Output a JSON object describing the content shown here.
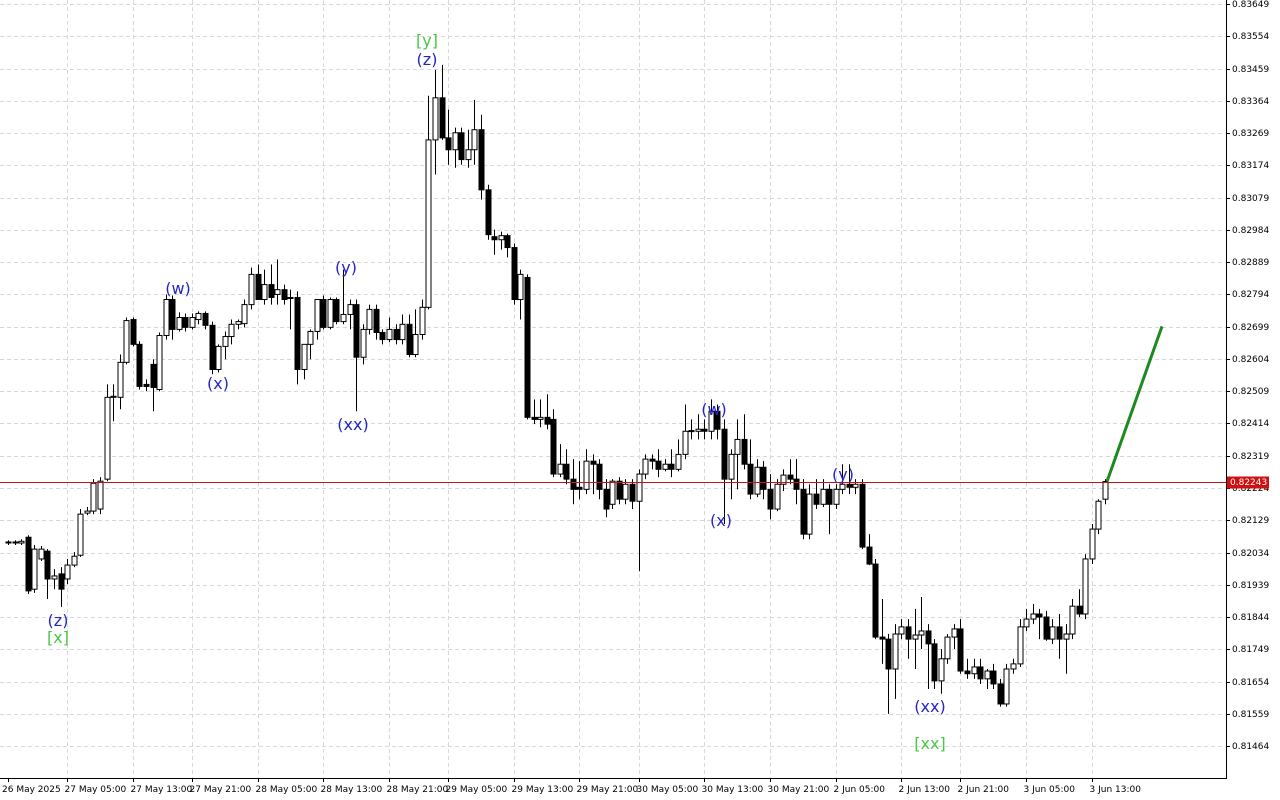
{
  "chart_data": {
    "type": "candlestick",
    "categories": [
      "26 May 2025",
      null,
      null,
      null,
      null,
      null,
      null,
      null,
      null,
      "27 May 05:00",
      null,
      null,
      null,
      null,
      null,
      null,
      null,
      null,
      null,
      "27 May 13:00",
      null,
      null,
      null,
      null,
      null,
      null,
      null,
      null,
      "27 May 21:00",
      null,
      null,
      null,
      null,
      null,
      null,
      null,
      null,
      null,
      "28 May 05:00",
      null,
      null,
      null,
      null,
      null,
      null,
      null,
      null,
      null,
      "28 May 13:00",
      null,
      null,
      null,
      null,
      null,
      null,
      null,
      null,
      null,
      "28 May 21:00",
      null,
      null,
      null,
      null,
      null,
      null,
      null,
      null,
      "29 May 05:00",
      null,
      null,
      null,
      null,
      null,
      null,
      null,
      null,
      null,
      "29 May 13:00",
      null,
      null,
      null,
      null,
      null,
      null,
      null,
      null,
      null,
      "29 May 21:00",
      null,
      null,
      null,
      null,
      null,
      null,
      null,
      null,
      "30 May 05:00",
      null,
      null,
      null,
      null,
      null,
      null,
      null,
      null,
      null,
      "30 May 13:00",
      null,
      null,
      null,
      null,
      null,
      null,
      null,
      null,
      null,
      "30 May 21:00",
      null,
      null,
      null,
      null,
      null,
      null,
      null,
      null,
      null,
      "2 Jun 05:00",
      null,
      null,
      null,
      null,
      null,
      null,
      null,
      null,
      null,
      "2 Jun 13:00",
      null,
      null,
      null,
      null,
      null,
      null,
      null,
      null,
      "2 Jun 21:00",
      null,
      null,
      null,
      null,
      null,
      null,
      null,
      null,
      null,
      "3 Jun 05:00",
      null,
      null,
      null,
      null,
      null,
      null,
      null,
      null,
      null,
      "3 Jun 13:00",
      null,
      null
    ],
    "candles": [
      [
        0.82065,
        0.8207,
        0.82056,
        0.82062
      ],
      [
        0.82065,
        0.8207,
        0.82056,
        0.82065
      ],
      [
        0.82062,
        0.82073,
        0.82056,
        0.82067
      ],
      [
        0.82079,
        0.82085,
        0.81912,
        0.81921
      ],
      [
        0.81926,
        0.82056,
        0.81915,
        0.82044
      ],
      [
        0.82015,
        0.82053,
        0.82009,
        0.82044
      ],
      [
        0.82038,
        0.82044,
        0.81897,
        0.81956
      ],
      [
        0.81956,
        0.81985,
        0.81926,
        0.81965
      ],
      [
        0.81971,
        0.81991,
        0.81874,
        0.81926
      ],
      [
        0.81956,
        0.82015,
        0.81941,
        0.81997
      ],
      [
        0.81997,
        0.82035,
        0.81991,
        0.82023
      ],
      [
        0.82026,
        0.82162,
        0.82021,
        0.82147
      ],
      [
        0.8215,
        0.82168,
        0.82144,
        0.82156
      ],
      [
        0.82156,
        0.8225,
        0.82147,
        0.82238
      ],
      [
        0.82162,
        0.82256,
        0.82147,
        0.82244
      ],
      [
        0.8225,
        0.82529,
        0.82244,
        0.82491
      ],
      [
        0.82491,
        0.82529,
        0.8242,
        0.82494
      ],
      [
        0.82491,
        0.82617,
        0.82456,
        0.82594
      ],
      [
        0.82594,
        0.82726,
        0.82588,
        0.82717
      ],
      [
        0.8272,
        0.82726,
        0.82641,
        0.82647
      ],
      [
        0.82647,
        0.82656,
        0.82514,
        0.82523
      ],
      [
        0.82529,
        0.82544,
        0.82509,
        0.82523
      ],
      [
        0.82588,
        0.82603,
        0.8245,
        0.8252
      ],
      [
        0.82514,
        0.82682,
        0.82509,
        0.82673
      ],
      [
        0.82673,
        0.82794,
        0.82661,
        0.82779
      ],
      [
        0.82779,
        0.82791,
        0.82661,
        0.82691
      ],
      [
        0.82691,
        0.82741,
        0.82685,
        0.82726
      ],
      [
        0.82726,
        0.82738,
        0.82685,
        0.82697
      ],
      [
        0.82697,
        0.82738,
        0.82691,
        0.82726
      ],
      [
        0.8272,
        0.82744,
        0.82706,
        0.82738
      ],
      [
        0.82738,
        0.82744,
        0.82691,
        0.82703
      ],
      [
        0.82703,
        0.82714,
        0.82559,
        0.82573
      ],
      [
        0.82573,
        0.82647,
        0.82564,
        0.82641
      ],
      [
        0.82641,
        0.82685,
        0.82603,
        0.8267
      ],
      [
        0.8267,
        0.8272,
        0.82647,
        0.82706
      ],
      [
        0.82706,
        0.8272,
        0.82691,
        0.82714
      ],
      [
        0.82708,
        0.82779,
        0.82697,
        0.82764
      ],
      [
        0.82764,
        0.82873,
        0.8275,
        0.82853
      ],
      [
        0.82853,
        0.82882,
        0.82779,
        0.82779
      ],
      [
        0.82779,
        0.82867,
        0.82764,
        0.82823
      ],
      [
        0.82823,
        0.82882,
        0.82764,
        0.82785
      ],
      [
        0.82794,
        0.82897,
        0.82764,
        0.82808
      ],
      [
        0.82808,
        0.82823,
        0.82764,
        0.82779
      ],
      [
        0.82785,
        0.82808,
        0.82691,
        0.82785
      ],
      [
        0.82785,
        0.82803,
        0.82529,
        0.82573
      ],
      [
        0.82573,
        0.82647,
        0.82544,
        0.82647
      ],
      [
        0.82647,
        0.82691,
        0.82603,
        0.82685
      ],
      [
        0.82685,
        0.82779,
        0.82661,
        0.82779
      ],
      [
        0.82779,
        0.82791,
        0.82691,
        0.82697
      ],
      [
        0.82697,
        0.82785,
        0.82691,
        0.82779
      ],
      [
        0.82779,
        0.82785,
        0.82706,
        0.82714
      ],
      [
        0.82714,
        0.82867,
        0.82706,
        0.82735
      ],
      [
        0.82735,
        0.82779,
        0.82691,
        0.82764
      ],
      [
        0.82764,
        0.82779,
        0.8245,
        0.82609
      ],
      [
        0.82609,
        0.82706,
        0.82588,
        0.82691
      ],
      [
        0.82691,
        0.82764,
        0.82676,
        0.8275
      ],
      [
        0.8275,
        0.82764,
        0.82661,
        0.82682
      ],
      [
        0.82682,
        0.82691,
        0.82647,
        0.82661
      ],
      [
        0.82661,
        0.82726,
        0.82653,
        0.82691
      ],
      [
        0.82691,
        0.82706,
        0.82647,
        0.82661
      ],
      [
        0.82661,
        0.82735,
        0.82647,
        0.82706
      ],
      [
        0.82706,
        0.82735,
        0.82609,
        0.82617
      ],
      [
        0.82617,
        0.8275,
        0.82609,
        0.82676
      ],
      [
        0.82676,
        0.82779,
        0.82661,
        0.82756
      ],
      [
        0.82756,
        0.83379,
        0.8275,
        0.83249
      ],
      [
        0.83249,
        0.83455,
        0.83147,
        0.83373
      ],
      [
        0.83373,
        0.8347,
        0.83249,
        0.83255
      ],
      [
        0.83255,
        0.83338,
        0.83176,
        0.8322
      ],
      [
        0.8322,
        0.83285,
        0.83167,
        0.8327
      ],
      [
        0.8327,
        0.83285,
        0.83176,
        0.83191
      ],
      [
        0.83191,
        0.83279,
        0.83167,
        0.8322
      ],
      [
        0.8322,
        0.83367,
        0.83176,
        0.83279
      ],
      [
        0.83279,
        0.83323,
        0.83073,
        0.83102
      ],
      [
        0.83102,
        0.83117,
        0.82955,
        0.8297
      ],
      [
        0.82964,
        0.82985,
        0.82911,
        0.82955
      ],
      [
        0.82955,
        0.82979,
        0.82926,
        0.82967
      ],
      [
        0.82967,
        0.82973,
        0.82903,
        0.82932
      ],
      [
        0.82932,
        0.82944,
        0.82764,
        0.82779
      ],
      [
        0.82779,
        0.82867,
        0.8272,
        0.82853
      ],
      [
        0.82844,
        0.82853,
        0.82426,
        0.82432
      ],
      [
        0.82432,
        0.82485,
        0.82412,
        0.82426
      ],
      [
        0.82426,
        0.82485,
        0.82403,
        0.82432
      ],
      [
        0.82432,
        0.825,
        0.82397,
        0.82412
      ],
      [
        0.82426,
        0.82456,
        0.82256,
        0.82265
      ],
      [
        0.82265,
        0.82353,
        0.82256,
        0.82294
      ],
      [
        0.82294,
        0.82338,
        0.82235,
        0.8225
      ],
      [
        0.8225,
        0.82309,
        0.82176,
        0.8222
      ],
      [
        0.82226,
        0.82303,
        0.82191,
        0.8222
      ],
      [
        0.8222,
        0.82338,
        0.82206,
        0.82303
      ],
      [
        0.82303,
        0.82323,
        0.82206,
        0.82294
      ],
      [
        0.82294,
        0.82309,
        0.82191,
        0.8222
      ],
      [
        0.8222,
        0.8225,
        0.82138,
        0.82162
      ],
      [
        0.82176,
        0.8225,
        0.82162,
        0.82244
      ],
      [
        0.82244,
        0.82256,
        0.82176,
        0.82191
      ],
      [
        0.82191,
        0.8225,
        0.82176,
        0.82235
      ],
      [
        0.82235,
        0.8225,
        0.82162,
        0.82185
      ],
      [
        0.82185,
        0.82279,
        0.81979,
        0.82265
      ],
      [
        0.82265,
        0.82323,
        0.8225,
        0.82309
      ],
      [
        0.82309,
        0.82323,
        0.82279,
        0.82303
      ],
      [
        0.82303,
        0.82338,
        0.82256,
        0.82279
      ],
      [
        0.82279,
        0.82309,
        0.82273,
        0.82294
      ],
      [
        0.82294,
        0.82338,
        0.82256,
        0.82279
      ],
      [
        0.82279,
        0.82367,
        0.82273,
        0.82323
      ],
      [
        0.82323,
        0.8247,
        0.82309,
        0.82391
      ],
      [
        0.82391,
        0.82426,
        0.82367,
        0.82393
      ],
      [
        0.82391,
        0.82441,
        0.82367,
        0.82397
      ],
      [
        0.82397,
        0.82426,
        0.82367,
        0.82391
      ],
      [
        0.82391,
        0.82485,
        0.82367,
        0.8245
      ],
      [
        0.8245,
        0.8247,
        0.82367,
        0.82397
      ],
      [
        0.82397,
        0.82426,
        0.82118,
        0.8225
      ],
      [
        0.8225,
        0.82338,
        0.82191,
        0.82323
      ],
      [
        0.82323,
        0.82426,
        0.8222,
        0.82367
      ],
      [
        0.82367,
        0.82441,
        0.82279,
        0.82294
      ],
      [
        0.82294,
        0.82367,
        0.82191,
        0.82206
      ],
      [
        0.82206,
        0.82309,
        0.82197,
        0.82285
      ],
      [
        0.82285,
        0.82303,
        0.82191,
        0.8222
      ],
      [
        0.8222,
        0.82265,
        0.82132,
        0.82162
      ],
      [
        0.82162,
        0.8225,
        0.82156,
        0.82235
      ],
      [
        0.82235,
        0.82279,
        0.82215,
        0.82262
      ],
      [
        0.82262,
        0.82309,
        0.82235,
        0.8225
      ],
      [
        0.8225,
        0.82309,
        0.82176,
        0.8222
      ],
      [
        0.8222,
        0.8225,
        0.82073,
        0.82088
      ],
      [
        0.82088,
        0.82235,
        0.82073,
        0.82206
      ],
      [
        0.82206,
        0.8225,
        0.82162,
        0.82176
      ],
      [
        0.82176,
        0.8225,
        0.82168,
        0.8222
      ],
      [
        0.8222,
        0.82235,
        0.82088,
        0.82176
      ],
      [
        0.82176,
        0.82235,
        0.82162,
        0.8222
      ],
      [
        0.8222,
        0.82294,
        0.82206,
        0.82235
      ],
      [
        0.82235,
        0.82294,
        0.82206,
        0.82226
      ],
      [
        0.82226,
        0.8225,
        0.82206,
        0.82235
      ],
      [
        0.82235,
        0.8225,
        0.82044,
        0.8205
      ],
      [
        0.8205,
        0.82088,
        0.81997,
        0.82
      ],
      [
        0.82,
        0.82015,
        0.81779,
        0.81785
      ],
      [
        0.81785,
        0.81897,
        0.81706,
        0.81779
      ],
      [
        0.81779,
        0.81794,
        0.81559,
        0.81691
      ],
      [
        0.81691,
        0.81823,
        0.81603,
        0.81794
      ],
      [
        0.81794,
        0.81838,
        0.81779,
        0.81815
      ],
      [
        0.81815,
        0.81838,
        0.81721,
        0.81779
      ],
      [
        0.81779,
        0.81868,
        0.81691,
        0.81791
      ],
      [
        0.81791,
        0.81903,
        0.8175,
        0.81803
      ],
      [
        0.81803,
        0.81823,
        0.81632,
        0.81765
      ],
      [
        0.81765,
        0.81779,
        0.81632,
        0.81656
      ],
      [
        0.81656,
        0.8175,
        0.81618,
        0.81721
      ],
      [
        0.81721,
        0.81794,
        0.81706,
        0.81785
      ],
      [
        0.81785,
        0.81823,
        0.8175,
        0.81809
      ],
      [
        0.81809,
        0.81838,
        0.81677,
        0.81685
      ],
      [
        0.81685,
        0.81721,
        0.81662,
        0.81677
      ],
      [
        0.81677,
        0.81721,
        0.81662,
        0.81697
      ],
      [
        0.81697,
        0.81721,
        0.81647,
        0.81662
      ],
      [
        0.81662,
        0.81691,
        0.81632,
        0.81685
      ],
      [
        0.81685,
        0.81706,
        0.81632,
        0.81647
      ],
      [
        0.81647,
        0.81662,
        0.8158,
        0.81588
      ],
      [
        0.81588,
        0.81706,
        0.8158,
        0.81691
      ],
      [
        0.81691,
        0.81721,
        0.81677,
        0.81706
      ],
      [
        0.81706,
        0.81838,
        0.81697,
        0.81815
      ],
      [
        0.81815,
        0.81868,
        0.81803,
        0.81838
      ],
      [
        0.81838,
        0.81882,
        0.81823,
        0.81853
      ],
      [
        0.81853,
        0.81868,
        0.81779,
        0.81844
      ],
      [
        0.81844,
        0.81862,
        0.81774,
        0.81779
      ],
      [
        0.81779,
        0.81838,
        0.81765,
        0.81815
      ],
      [
        0.81815,
        0.81853,
        0.81721,
        0.81779
      ],
      [
        0.81779,
        0.81823,
        0.81677,
        0.81794
      ],
      [
        0.81794,
        0.81897,
        0.81779,
        0.81876
      ],
      [
        0.81876,
        0.81926,
        0.81844,
        0.81853
      ],
      [
        0.81853,
        0.82029,
        0.81838,
        0.82015
      ],
      [
        0.82015,
        0.82118,
        0.82,
        0.82103
      ],
      [
        0.82103,
        0.82191,
        0.82088,
        0.82185
      ],
      [
        0.82191,
        0.8225,
        0.82176,
        0.82243
      ]
    ],
    "up_color": "#ffffff",
    "down_color": "#000000",
    "line_color": "#000000",
    "ylim": [
      0.8137,
      0.83661
    ],
    "yticks": [
      0.83649,
      0.83554,
      0.83459,
      0.83364,
      0.83269,
      0.83174,
      0.83079,
      0.82984,
      0.82889,
      0.82794,
      0.82699,
      0.82604,
      0.82509,
      0.82414,
      0.82319,
      0.82224,
      0.82129,
      0.82034,
      0.81939,
      0.81844,
      0.81749,
      0.81654,
      0.81559,
      0.81464
    ],
    "grid": true,
    "price_line": {
      "value": 0.82243,
      "color": "#d01010"
    },
    "forecast": {
      "color": "#1c8a1c",
      "values": [
        0.82243,
        0.827
      ]
    },
    "annotations": [
      {
        "text": "[y]",
        "color": "#48c848"
      },
      {
        "text": "(z)",
        "color": "#2525c8"
      },
      {
        "text": "(w)",
        "color": "#2525c8"
      },
      {
        "text": "(x)",
        "color": "#2525c8"
      },
      {
        "text": "(y)",
        "color": "#2525c8"
      },
      {
        "text": "(xx)",
        "color": "#2525c8"
      },
      {
        "text": "(z)",
        "color": "#2525c8"
      },
      {
        "text": "[x]",
        "color": "#48c848"
      },
      {
        "text": "(w)",
        "color": "#2525c8"
      },
      {
        "text": "(x)",
        "color": "#2525c8"
      },
      {
        "text": "(y)",
        "color": "#2525c8"
      },
      {
        "text": "(xx)",
        "color": "#2525c8"
      },
      {
        "text": "[xx]",
        "color": "#48c848"
      }
    ]
  }
}
